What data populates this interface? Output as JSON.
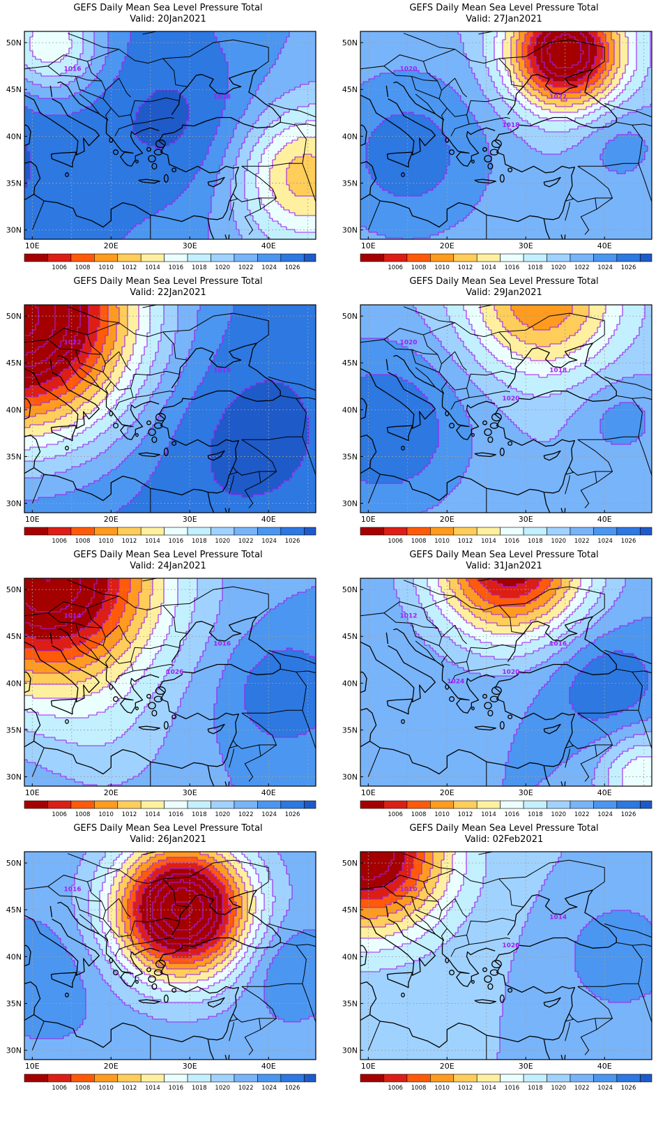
{
  "colors": {
    "levels": [
      "#a50000",
      "#dc1e14",
      "#ff5a0a",
      "#ff9b1e",
      "#ffcd5a",
      "#fff0a0",
      "#ebffff",
      "#c3f0ff",
      "#a0d2ff",
      "#78b4fa",
      "#4b96f0",
      "#2d78e1",
      "#1e5ac8"
    ],
    "contour_line": "#a020f0",
    "coast": "#000000",
    "grid": "#a0a0a0"
  },
  "colorbar_labels": [
    "1006",
    "1008",
    "1010",
    "1012",
    "1014",
    "1016",
    "1018",
    "1020",
    "1022",
    "1024",
    "1026"
  ],
  "lon_labels": [
    "10E",
    "20E",
    "30E",
    "40E"
  ],
  "lat_labels": [
    "50N",
    "45N",
    "40N",
    "35N",
    "30N"
  ],
  "panels": [
    {
      "title": "GEFS Daily Mean Sea Level Pressure Total",
      "valid": "Valid: 20Jan2021",
      "contour_labels": [
        "1016",
        "1018"
      ],
      "base": 1024.5,
      "g": -0.15,
      "h": 0.06,
      "sys": [
        {
          "lon": 44,
          "lat": 36,
          "a": -10,
          "r": 6
        },
        {
          "lon": 12,
          "lat": 50,
          "a": -12,
          "r": 5
        },
        {
          "lon": 30,
          "lat": 41,
          "a": 3,
          "r": 7
        }
      ]
    },
    {
      "title": "GEFS Daily Mean Sea Level Pressure Total",
      "valid": "Valid: 27Jan2021",
      "contour_labels": [
        "1020",
        "1022",
        "1018"
      ],
      "base": 1021,
      "g": 0.0,
      "h": 0.0,
      "sys": [
        {
          "lon": 35,
          "lat": 49,
          "a": -22,
          "r": 5
        },
        {
          "lon": 15,
          "lat": 38,
          "a": 5,
          "r": 8
        },
        {
          "lon": 42,
          "lat": 39,
          "a": 3,
          "r": 4
        }
      ]
    },
    {
      "title": "GEFS Daily Mean Sea Level Pressure Total",
      "valid": "Valid: 22Jan2021",
      "contour_labels": [
        "1022",
        "1018"
      ],
      "base": 1026,
      "g": 0.0,
      "h": 0.0,
      "sys": [
        {
          "lon": 8,
          "lat": 50,
          "a": -30,
          "r": 11
        },
        {
          "lon": 36,
          "lat": 38,
          "a": 2,
          "r": 8
        }
      ]
    },
    {
      "title": "GEFS Daily Mean Sea Level Pressure Total",
      "valid": "Valid: 29Jan2021",
      "contour_labels": [
        "1020",
        "1018",
        "1020"
      ],
      "base": 1021,
      "g": 0.0,
      "h": 0.0,
      "sys": [
        {
          "lon": 32,
          "lat": 52,
          "a": -12,
          "r": 7
        },
        {
          "lon": 12,
          "lat": 38,
          "a": 6,
          "r": 8
        },
        {
          "lon": 42,
          "lat": 39,
          "a": 3,
          "r": 4
        }
      ]
    },
    {
      "title": "GEFS Daily Mean Sea Level Pressure Total",
      "valid": "Valid: 24Jan2021",
      "contour_labels": [
        "1014",
        "1016",
        "1026"
      ],
      "base": 1023,
      "g": 0.0,
      "h": 0.0,
      "sys": [
        {
          "lon": 12,
          "lat": 51,
          "a": -24,
          "r": 10
        },
        {
          "lon": 42,
          "lat": 39,
          "a": 4,
          "r": 5
        },
        {
          "lon": 20,
          "lat": 33,
          "a": -2,
          "r": 6
        }
      ]
    },
    {
      "title": "GEFS Daily Mean Sea Level Pressure Total",
      "valid": "Valid: 31Jan2021",
      "contour_labels": [
        "1012",
        "1016",
        "1020",
        "1024"
      ],
      "base": 1023,
      "g": 0.0,
      "h": 0.0,
      "sys": [
        {
          "lon": 28,
          "lat": 53,
          "a": -20,
          "r": 7
        },
        {
          "lon": 40,
          "lat": 40,
          "a": 4,
          "r": 5
        },
        {
          "lon": 45,
          "lat": 30,
          "a": -8,
          "r": 4
        }
      ]
    },
    {
      "title": "GEFS Daily Mean Sea Level Pressure Total",
      "valid": "Valid: 26Jan2021",
      "contour_labels": [
        "1016"
      ],
      "base": 1022.5,
      "g": 0.0,
      "h": 0.0,
      "sys": [
        {
          "lon": 29,
          "lat": 45,
          "a": -26,
          "r": 6
        },
        {
          "lon": 42,
          "lat": 39,
          "a": 3,
          "r": 4
        },
        {
          "lon": 12,
          "lat": 38,
          "a": 2,
          "r": 5
        }
      ]
    },
    {
      "title": "GEFS Daily Mean Sea Level Pressure Total",
      "valid": "Valid: 02Feb2021",
      "contour_labels": [
        "1010",
        "1014",
        "1020"
      ],
      "base": 1021,
      "g": 0.0,
      "h": 0.0,
      "sys": [
        {
          "lon": 10,
          "lat": 51,
          "a": -20,
          "r": 7
        },
        {
          "lon": 42,
          "lat": 40,
          "a": 4,
          "r": 5
        }
      ]
    }
  ]
}
